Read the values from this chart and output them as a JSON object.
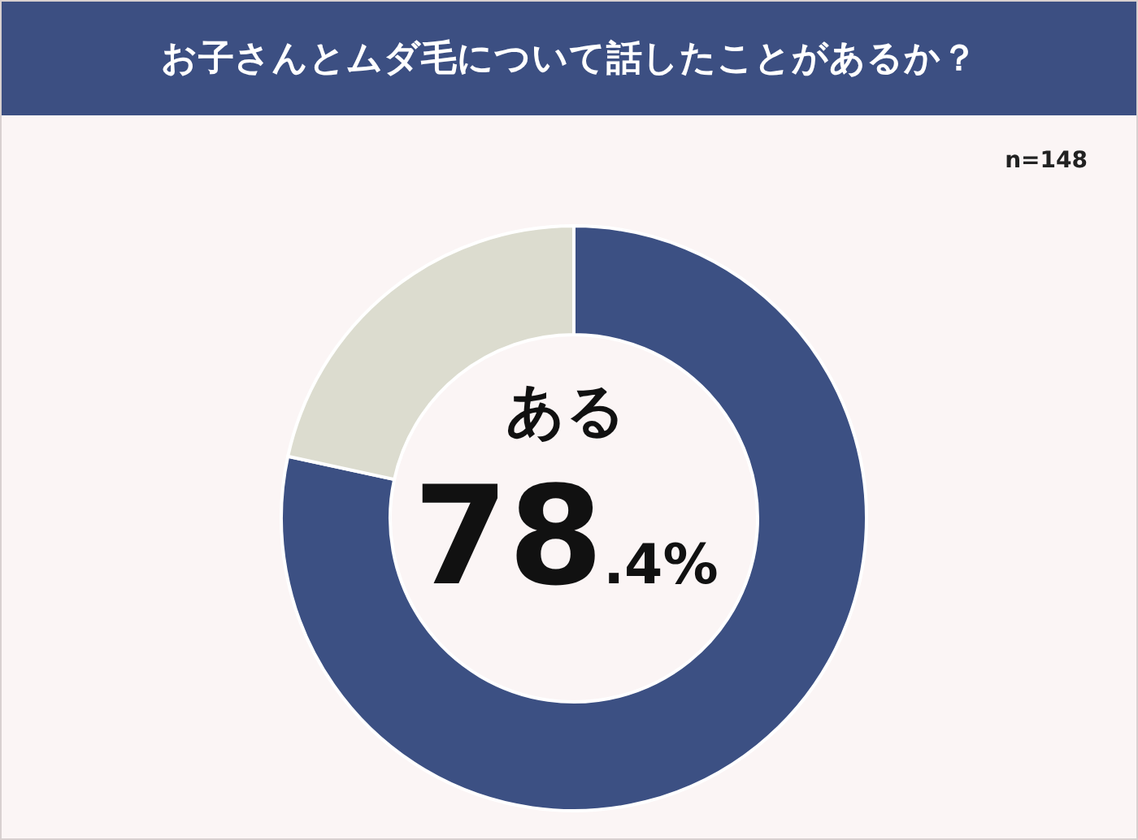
{
  "chart_data": {
    "type": "donut",
    "title": "お子さんとムダ毛について話したことがあるか？",
    "categories": [
      "ある",
      null
    ],
    "values": [
      78.4,
      21.6
    ],
    "colors": [
      "#3c5083",
      "#dcdccf"
    ],
    "value_labels": [
      "78.4%",
      null
    ],
    "annotations": [
      "n=148"
    ]
  }
}
